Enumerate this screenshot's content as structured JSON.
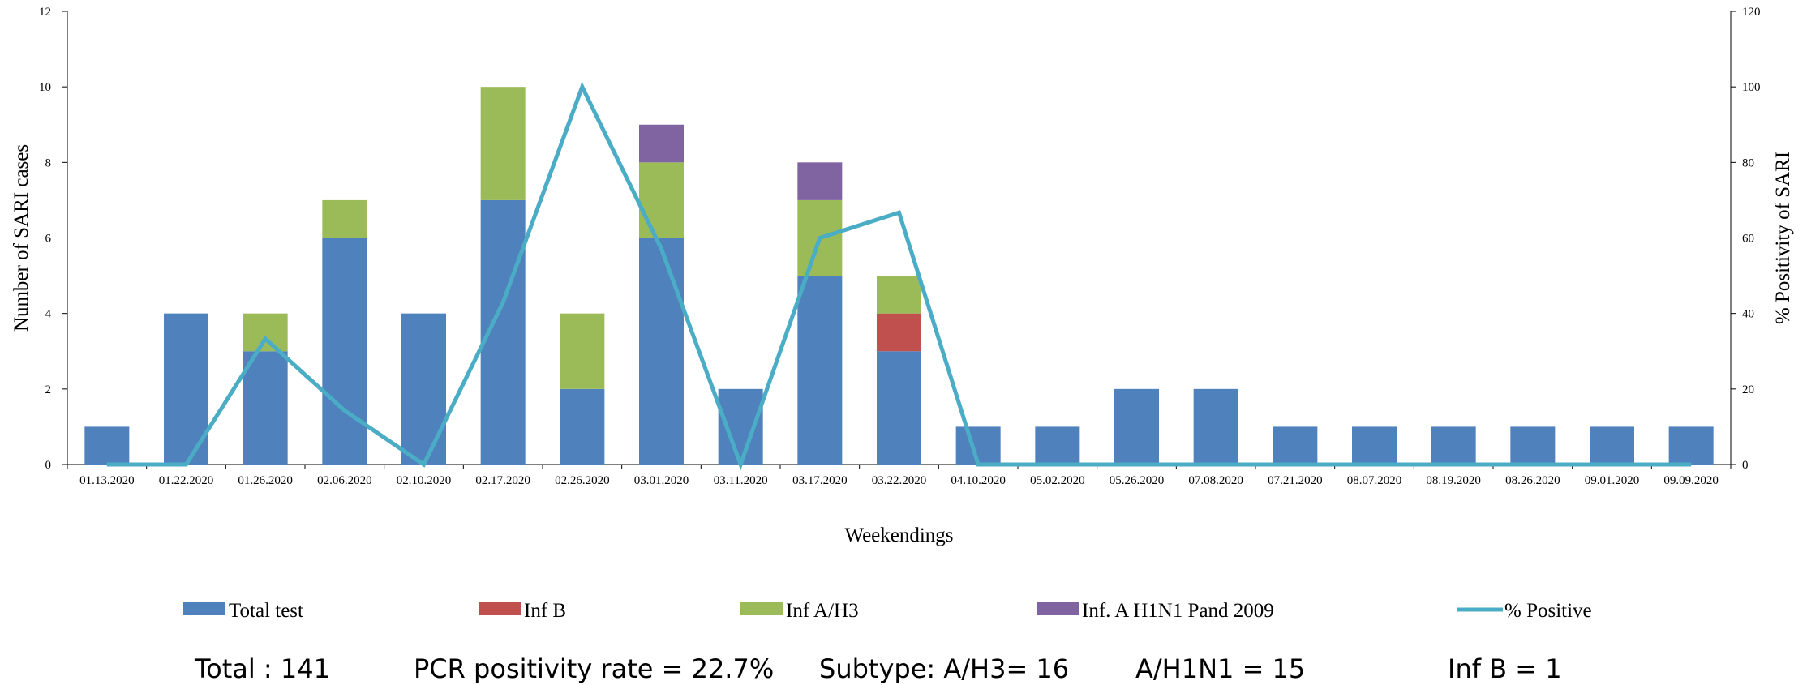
{
  "colors": {
    "total": "#4f81bd",
    "inf_b": "#c0504d",
    "inf_a_h3": "#9bbb59",
    "inf_a_h1n1": "#8064a2",
    "positive": "#4bacc6"
  },
  "chart_data": {
    "type": "bar",
    "stacked": true,
    "categories": [
      "01.13.2020",
      "01.22.2020",
      "01.26.2020",
      "02.06.2020",
      "02.10.2020",
      "02.17.2020",
      "02.26.2020",
      "03.01.2020",
      "03.11.2020",
      "03.17.2020",
      "03.22.2020",
      "04.10.2020",
      "05.02.2020",
      "05.26.2020",
      "07.08.2020",
      "07.21.2020",
      "08.07.2020",
      "08.19.2020",
      "08.26.2020",
      "09.01.2020",
      "09.09.2020"
    ],
    "series": [
      {
        "name": "Total test",
        "type": "bar",
        "axis": "left",
        "color_key": "total",
        "values": [
          1,
          4,
          3,
          6,
          4,
          7,
          2,
          6,
          2,
          5,
          3,
          1,
          1,
          2,
          2,
          1,
          1,
          1,
          1,
          1,
          1
        ]
      },
      {
        "name": "Inf B",
        "type": "bar",
        "axis": "left",
        "color_key": "inf_b",
        "values": [
          0,
          0,
          0,
          0,
          0,
          0,
          0,
          0,
          0,
          0,
          1,
          0,
          0,
          0,
          0,
          0,
          0,
          0,
          0,
          0,
          0
        ]
      },
      {
        "name": "Inf A/H3",
        "type": "bar",
        "axis": "left",
        "color_key": "inf_a_h3",
        "values": [
          0,
          0,
          1,
          1,
          0,
          3,
          2,
          2,
          0,
          2,
          1,
          0,
          0,
          0,
          0,
          0,
          0,
          0,
          0,
          0,
          0
        ]
      },
      {
        "name": "Inf. A H1N1 Pand 2009",
        "type": "bar",
        "axis": "left",
        "color_key": "inf_a_h1n1",
        "values": [
          0,
          0,
          0,
          0,
          0,
          0,
          0,
          1,
          0,
          1,
          0,
          0,
          0,
          0,
          0,
          0,
          0,
          0,
          0,
          0,
          0
        ]
      },
      {
        "name": "% Positive",
        "type": "line",
        "axis": "right",
        "color_key": "positive",
        "values": [
          0,
          0,
          33.3,
          14.3,
          0,
          42.9,
          100,
          57.1,
          0,
          60,
          66.7,
          0,
          0,
          0,
          0,
          0,
          0,
          0,
          0,
          0,
          0
        ]
      }
    ],
    "xlabel": "Weekendings",
    "ylabel": "Number of SARI cases",
    "y2label": "% Positivity of SARI",
    "ylim": [
      0,
      12
    ],
    "yticks": [
      0,
      2,
      4,
      6,
      8,
      10,
      12
    ],
    "y2lim": [
      0,
      120
    ],
    "y2ticks": [
      0,
      20,
      40,
      60,
      80,
      100,
      120
    ],
    "legend_position": "bottom"
  },
  "summary": {
    "total": "Total : 141",
    "pcr": "PCR positivity rate = 22.7%",
    "subtype": "Subtype: A/H3= 16",
    "h1n1": "A/H1N1 = 15",
    "infb": "Inf B = 1"
  }
}
